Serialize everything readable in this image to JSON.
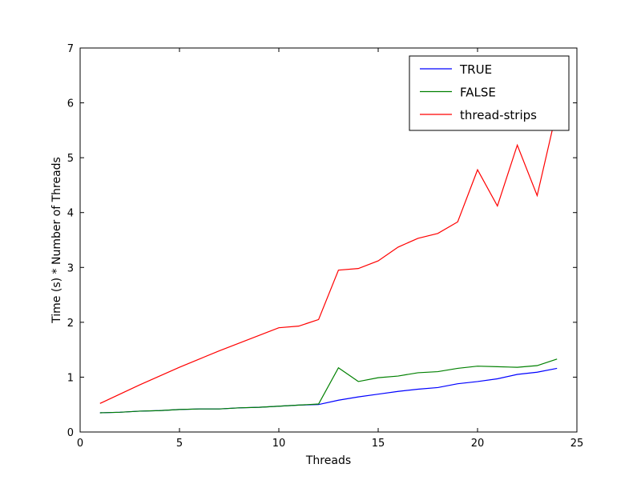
{
  "chart_data": {
    "type": "line",
    "xlabel": "Threads",
    "ylabel": "Time (s) * Number of Threads",
    "xlim": [
      0,
      25
    ],
    "ylim": [
      0,
      7
    ],
    "xticks": [
      0,
      5,
      10,
      15,
      20,
      25
    ],
    "yticks": [
      0,
      1,
      2,
      3,
      4,
      5,
      6,
      7
    ],
    "grid": false,
    "legend": "top-right",
    "x": [
      1,
      2,
      3,
      4,
      5,
      6,
      7,
      8,
      9,
      10,
      11,
      12,
      13,
      14,
      15,
      16,
      17,
      18,
      19,
      20,
      21,
      22,
      23,
      24
    ],
    "series": [
      {
        "name": "TRUE",
        "color": "#0000ff",
        "values": [
          0.35,
          0.36,
          0.38,
          0.39,
          0.41,
          0.42,
          0.42,
          0.44,
          0.45,
          0.47,
          0.49,
          0.5,
          0.58,
          0.64,
          0.69,
          0.74,
          0.78,
          0.81,
          0.88,
          0.92,
          0.97,
          1.05,
          1.09,
          1.16
        ]
      },
      {
        "name": "FALSE",
        "color": "#008000",
        "values": [
          0.35,
          0.36,
          0.38,
          0.39,
          0.41,
          0.42,
          0.42,
          0.44,
          0.45,
          0.47,
          0.49,
          0.51,
          1.17,
          0.92,
          0.99,
          1.02,
          1.08,
          1.1,
          1.16,
          1.2,
          1.19,
          1.18,
          1.21,
          1.33
        ]
      },
      {
        "name": "thread-strips",
        "color": "#ff0000",
        "values": [
          0.52,
          0.69,
          0.86,
          1.02,
          1.18,
          1.33,
          1.48,
          1.62,
          1.76,
          1.9,
          1.93,
          2.05,
          2.95,
          2.98,
          3.12,
          3.37,
          3.53,
          3.62,
          3.83,
          4.78,
          4.12,
          5.23,
          4.31,
          5.88
        ]
      }
    ]
  }
}
